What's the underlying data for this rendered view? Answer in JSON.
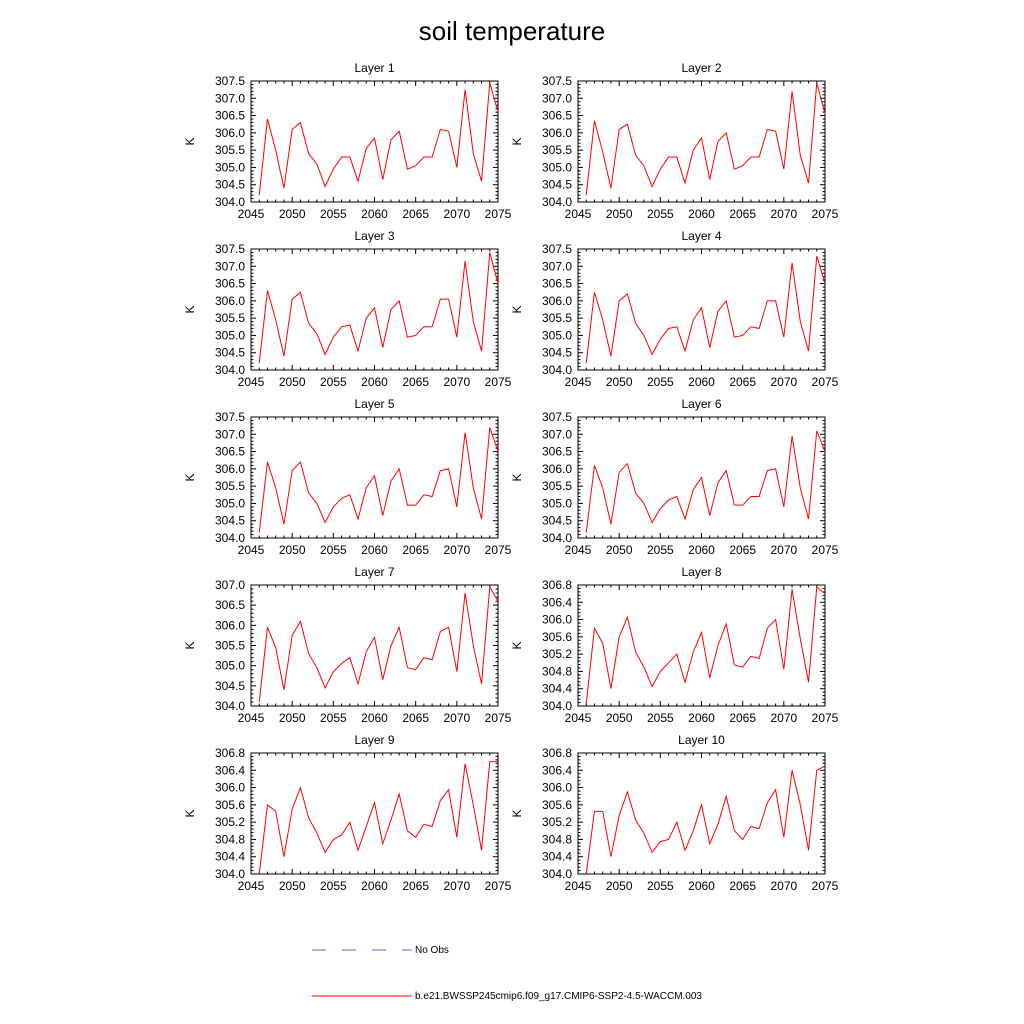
{
  "title": "soil temperature",
  "colors": {
    "model": "#ff0000",
    "obs": "#6666cc",
    "axis": "#000000"
  },
  "legend": {
    "obs_label": "No Obs",
    "model_label": "b.e21.BWSSP245cmip6.f09_g17.CMIP6-SSP2-4.5-WACCM.003"
  },
  "chart_data": [
    {
      "type": "line",
      "title": "Layer 1",
      "xlabel": "",
      "ylabel": "K",
      "xlim": [
        2045,
        2075
      ],
      "ylim": [
        304.0,
        307.5
      ],
      "xticks": [
        2045,
        2050,
        2055,
        2060,
        2065,
        2070,
        2075
      ],
      "yticks": [
        "304.0",
        "304.5",
        "305.0",
        "305.5",
        "306.0",
        "306.5",
        "307.0",
        "307.5"
      ],
      "grid": false,
      "series": [
        {
          "name": "b.e21.BWSSP245cmip6.f09_g17.CMIP6-SSP2-4.5-WACCM.003",
          "x": [
            2046,
            2047,
            2048,
            2049,
            2050,
            2051,
            2052,
            2053,
            2054,
            2055,
            2056,
            2057,
            2058,
            2059,
            2060,
            2061,
            2062,
            2063,
            2064,
            2065,
            2066,
            2067,
            2068,
            2069,
            2070,
            2071,
            2072,
            2073,
            2074,
            2075
          ],
          "values": [
            304.2,
            306.4,
            305.5,
            304.4,
            306.1,
            306.3,
            305.4,
            305.1,
            304.45,
            304.95,
            305.3,
            305.3,
            304.6,
            305.55,
            305.85,
            304.65,
            305.8,
            306.05,
            304.95,
            305.05,
            305.3,
            305.3,
            306.1,
            306.05,
            305.0,
            307.25,
            305.4,
            304.6,
            307.45,
            306.6
          ]
        }
      ]
    },
    {
      "type": "line",
      "title": "Layer 2",
      "xlabel": "",
      "ylabel": "K",
      "xlim": [
        2045,
        2075
      ],
      "ylim": [
        304.0,
        307.5
      ],
      "xticks": [
        2045,
        2050,
        2055,
        2060,
        2065,
        2070,
        2075
      ],
      "yticks": [
        "304.0",
        "304.5",
        "305.0",
        "305.5",
        "306.0",
        "306.5",
        "307.0",
        "307.5"
      ],
      "grid": false,
      "series": [
        {
          "name": "b.e21.BWSSP245cmip6.f09_g17.CMIP6-SSP2-4.5-WACCM.003",
          "x": [
            2046,
            2047,
            2048,
            2049,
            2050,
            2051,
            2052,
            2053,
            2054,
            2055,
            2056,
            2057,
            2058,
            2059,
            2060,
            2061,
            2062,
            2063,
            2064,
            2065,
            2066,
            2067,
            2068,
            2069,
            2070,
            2071,
            2072,
            2073,
            2074,
            2075
          ],
          "values": [
            304.2,
            306.35,
            305.45,
            304.4,
            306.1,
            306.25,
            305.35,
            305.05,
            304.45,
            304.95,
            305.3,
            305.3,
            304.55,
            305.5,
            305.85,
            304.65,
            305.75,
            306.0,
            304.95,
            305.05,
            305.3,
            305.3,
            306.1,
            306.05,
            304.95,
            307.2,
            305.35,
            304.55,
            307.45,
            306.55
          ]
        }
      ]
    },
    {
      "type": "line",
      "title": "Layer 3",
      "xlabel": "",
      "ylabel": "K",
      "xlim": [
        2045,
        2075
      ],
      "ylim": [
        304.0,
        307.5
      ],
      "xticks": [
        2045,
        2050,
        2055,
        2060,
        2065,
        2070,
        2075
      ],
      "yticks": [
        "304.0",
        "304.5",
        "305.0",
        "305.5",
        "306.0",
        "306.5",
        "307.0",
        "307.5"
      ],
      "grid": false,
      "series": [
        {
          "name": "b.e21.BWSSP245cmip6.f09_g17.CMIP6-SSP2-4.5-WACCM.003",
          "x": [
            2046,
            2047,
            2048,
            2049,
            2050,
            2051,
            2052,
            2053,
            2054,
            2055,
            2056,
            2057,
            2058,
            2059,
            2060,
            2061,
            2062,
            2063,
            2064,
            2065,
            2066,
            2067,
            2068,
            2069,
            2070,
            2071,
            2072,
            2073,
            2074,
            2075
          ],
          "values": [
            304.2,
            306.3,
            305.45,
            304.4,
            306.05,
            306.25,
            305.35,
            305.05,
            304.45,
            304.95,
            305.25,
            305.3,
            304.55,
            305.5,
            305.8,
            304.65,
            305.75,
            306.0,
            304.95,
            305.0,
            305.25,
            305.25,
            306.05,
            306.05,
            304.95,
            307.15,
            305.4,
            304.55,
            307.4,
            306.5
          ]
        }
      ]
    },
    {
      "type": "line",
      "title": "Layer 4",
      "xlabel": "",
      "ylabel": "K",
      "xlim": [
        2045,
        2075
      ],
      "ylim": [
        304.0,
        307.5
      ],
      "xticks": [
        2045,
        2050,
        2055,
        2060,
        2065,
        2070,
        2075
      ],
      "yticks": [
        "304.0",
        "304.5",
        "305.0",
        "305.5",
        "306.0",
        "306.5",
        "307.0",
        "307.5"
      ],
      "grid": false,
      "series": [
        {
          "name": "b.e21.BWSSP245cmip6.f09_g17.CMIP6-SSP2-4.5-WACCM.003",
          "x": [
            2046,
            2047,
            2048,
            2049,
            2050,
            2051,
            2052,
            2053,
            2054,
            2055,
            2056,
            2057,
            2058,
            2059,
            2060,
            2061,
            2062,
            2063,
            2064,
            2065,
            2066,
            2067,
            2068,
            2069,
            2070,
            2071,
            2072,
            2073,
            2074,
            2075
          ],
          "values": [
            304.2,
            306.25,
            305.45,
            304.4,
            306.0,
            306.2,
            305.35,
            305.0,
            304.45,
            304.9,
            305.2,
            305.25,
            304.55,
            305.45,
            305.8,
            304.65,
            305.7,
            306.0,
            304.95,
            305.0,
            305.25,
            305.2,
            306.0,
            306.0,
            304.95,
            307.1,
            305.4,
            304.55,
            307.3,
            306.5
          ]
        }
      ]
    },
    {
      "type": "line",
      "title": "Layer 5",
      "xlabel": "",
      "ylabel": "K",
      "xlim": [
        2045,
        2075
      ],
      "ylim": [
        304.0,
        307.5
      ],
      "xticks": [
        2045,
        2050,
        2055,
        2060,
        2065,
        2070,
        2075
      ],
      "yticks": [
        "304.0",
        "304.5",
        "305.0",
        "305.5",
        "306.0",
        "306.5",
        "307.0",
        "307.5"
      ],
      "grid": false,
      "series": [
        {
          "name": "b.e21.BWSSP245cmip6.f09_g17.CMIP6-SSP2-4.5-WACCM.003",
          "x": [
            2046,
            2047,
            2048,
            2049,
            2050,
            2051,
            2052,
            2053,
            2054,
            2055,
            2056,
            2057,
            2058,
            2059,
            2060,
            2061,
            2062,
            2063,
            2064,
            2065,
            2066,
            2067,
            2068,
            2069,
            2070,
            2071,
            2072,
            2073,
            2074,
            2075
          ],
          "values": [
            304.15,
            306.2,
            305.45,
            304.4,
            305.95,
            306.2,
            305.3,
            305.0,
            304.45,
            304.9,
            305.15,
            305.25,
            304.55,
            305.45,
            305.8,
            304.65,
            305.65,
            306.0,
            304.95,
            304.95,
            305.25,
            305.2,
            305.95,
            306.0,
            304.9,
            307.05,
            305.45,
            304.55,
            307.2,
            306.5
          ]
        }
      ]
    },
    {
      "type": "line",
      "title": "Layer 6",
      "xlabel": "",
      "ylabel": "K",
      "xlim": [
        2045,
        2075
      ],
      "ylim": [
        304.0,
        307.5
      ],
      "xticks": [
        2045,
        2050,
        2055,
        2060,
        2065,
        2070,
        2075
      ],
      "yticks": [
        "304.0",
        "304.5",
        "305.0",
        "305.5",
        "306.0",
        "306.5",
        "307.0",
        "307.5"
      ],
      "grid": false,
      "series": [
        {
          "name": "b.e21.BWSSP245cmip6.f09_g17.CMIP6-SSP2-4.5-WACCM.003",
          "x": [
            2046,
            2047,
            2048,
            2049,
            2050,
            2051,
            2052,
            2053,
            2054,
            2055,
            2056,
            2057,
            2058,
            2059,
            2060,
            2061,
            2062,
            2063,
            2064,
            2065,
            2066,
            2067,
            2068,
            2069,
            2070,
            2071,
            2072,
            2073,
            2074,
            2075
          ],
          "values": [
            304.15,
            306.1,
            305.45,
            304.4,
            305.9,
            306.15,
            305.3,
            305.0,
            304.45,
            304.85,
            305.1,
            305.2,
            304.55,
            305.4,
            305.75,
            304.65,
            305.6,
            305.95,
            304.95,
            304.95,
            305.2,
            305.2,
            305.95,
            306.0,
            304.9,
            306.95,
            305.45,
            304.55,
            307.1,
            306.5
          ]
        }
      ]
    },
    {
      "type": "line",
      "title": "Layer 7",
      "xlabel": "",
      "ylabel": "K",
      "xlim": [
        2045,
        2075
      ],
      "ylim": [
        304.0,
        307.0
      ],
      "xticks": [
        2045,
        2050,
        2055,
        2060,
        2065,
        2070,
        2075
      ],
      "yticks": [
        "304.0",
        "304.5",
        "305.0",
        "305.5",
        "306.0",
        "306.5",
        "307.0"
      ],
      "grid": false,
      "series": [
        {
          "name": "b.e21.BWSSP245cmip6.f09_g17.CMIP6-SSP2-4.5-WACCM.003",
          "x": [
            2046,
            2047,
            2048,
            2049,
            2050,
            2051,
            2052,
            2053,
            2054,
            2055,
            2056,
            2057,
            2058,
            2059,
            2060,
            2061,
            2062,
            2063,
            2064,
            2065,
            2066,
            2067,
            2068,
            2069,
            2070,
            2071,
            2072,
            2073,
            2074,
            2075
          ],
          "values": [
            304.1,
            305.95,
            305.45,
            304.4,
            305.75,
            306.1,
            305.3,
            304.95,
            304.45,
            304.85,
            305.05,
            305.2,
            304.55,
            305.35,
            305.7,
            304.65,
            305.5,
            305.95,
            304.95,
            304.9,
            305.2,
            305.15,
            305.85,
            305.95,
            304.85,
            306.8,
            305.5,
            304.55,
            306.95,
            306.6
          ]
        }
      ]
    },
    {
      "type": "line",
      "title": "Layer 8",
      "xlabel": "",
      "ylabel": "K",
      "xlim": [
        2045,
        2075
      ],
      "ylim": [
        304.0,
        306.8
      ],
      "xticks": [
        2045,
        2050,
        2055,
        2060,
        2065,
        2070,
        2075
      ],
      "yticks": [
        "304.0",
        "304.4",
        "304.8",
        "305.2",
        "305.6",
        "306.0",
        "306.4",
        "306.8"
      ],
      "grid": false,
      "series": [
        {
          "name": "b.e21.BWSSP245cmip6.f09_g17.CMIP6-SSP2-4.5-WACCM.003",
          "x": [
            2046,
            2047,
            2048,
            2049,
            2050,
            2051,
            2052,
            2053,
            2054,
            2055,
            2056,
            2057,
            2058,
            2059,
            2060,
            2061,
            2062,
            2063,
            2064,
            2065,
            2066,
            2067,
            2068,
            2069,
            2070,
            2071,
            2072,
            2073,
            2074,
            2075
          ],
          "values": [
            304.05,
            305.8,
            305.45,
            304.4,
            305.6,
            306.05,
            305.25,
            304.9,
            304.45,
            304.8,
            305.0,
            305.2,
            304.55,
            305.25,
            305.7,
            304.65,
            305.4,
            305.9,
            304.95,
            304.9,
            305.15,
            305.1,
            305.8,
            306.0,
            304.85,
            306.7,
            305.55,
            304.55,
            306.75,
            306.6
          ]
        }
      ]
    },
    {
      "type": "line",
      "title": "Layer 9",
      "xlabel": "",
      "ylabel": "K",
      "xlim": [
        2045,
        2075
      ],
      "ylim": [
        304.0,
        306.8
      ],
      "xticks": [
        2045,
        2050,
        2055,
        2060,
        2065,
        2070,
        2075
      ],
      "yticks": [
        "304.0",
        "304.4",
        "304.8",
        "305.2",
        "305.6",
        "306.0",
        "306.4",
        "306.8"
      ],
      "grid": false,
      "series": [
        {
          "name": "b.e21.BWSSP245cmip6.f09_g17.CMIP6-SSP2-4.5-WACCM.003",
          "x": [
            2046,
            2047,
            2048,
            2049,
            2050,
            2051,
            2052,
            2053,
            2054,
            2055,
            2056,
            2057,
            2058,
            2059,
            2060,
            2061,
            2062,
            2063,
            2064,
            2065,
            2066,
            2067,
            2068,
            2069,
            2070,
            2071,
            2072,
            2073,
            2074,
            2075
          ],
          "values": [
            304.0,
            305.6,
            305.45,
            304.4,
            305.5,
            306.0,
            305.3,
            304.95,
            304.5,
            304.8,
            304.9,
            305.2,
            304.55,
            305.1,
            305.65,
            304.7,
            305.25,
            305.85,
            305.0,
            304.85,
            305.15,
            305.1,
            305.7,
            305.95,
            304.85,
            306.55,
            305.6,
            304.55,
            306.6,
            306.6
          ]
        }
      ]
    },
    {
      "type": "line",
      "title": "Layer 10",
      "xlabel": "",
      "ylabel": "K",
      "xlim": [
        2045,
        2075
      ],
      "ylim": [
        304.0,
        306.8
      ],
      "xticks": [
        2045,
        2050,
        2055,
        2060,
        2065,
        2070,
        2075
      ],
      "yticks": [
        "304.0",
        "304.4",
        "304.8",
        "305.2",
        "305.6",
        "306.0",
        "306.4",
        "306.8"
      ],
      "grid": false,
      "series": [
        {
          "name": "b.e21.BWSSP245cmip6.f09_g17.CMIP6-SSP2-4.5-WACCM.003",
          "x": [
            2046,
            2047,
            2048,
            2049,
            2050,
            2051,
            2052,
            2053,
            2054,
            2055,
            2056,
            2057,
            2058,
            2059,
            2060,
            2061,
            2062,
            2063,
            2064,
            2065,
            2066,
            2067,
            2068,
            2069,
            2070,
            2071,
            2072,
            2073,
            2074,
            2075
          ],
          "values": [
            304.0,
            305.45,
            305.45,
            304.4,
            305.35,
            305.9,
            305.25,
            304.95,
            304.5,
            304.75,
            304.8,
            305.2,
            304.55,
            305.0,
            305.6,
            304.7,
            305.15,
            305.8,
            305.0,
            304.8,
            305.1,
            305.05,
            305.65,
            305.95,
            304.85,
            306.4,
            305.6,
            304.55,
            306.4,
            306.5
          ]
        }
      ]
    }
  ]
}
